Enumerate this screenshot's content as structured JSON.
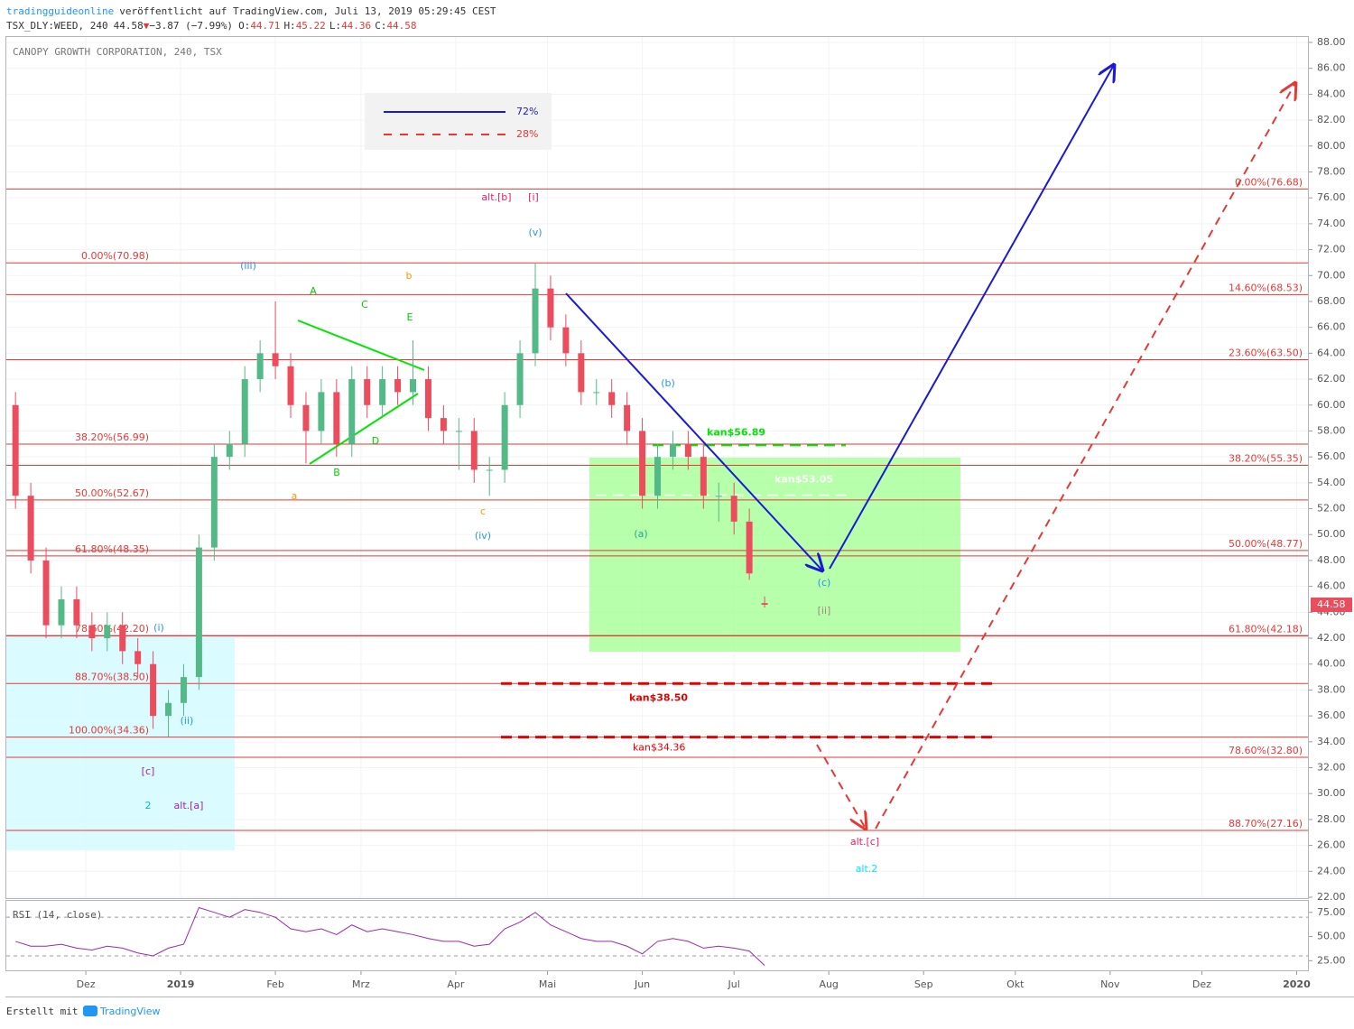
{
  "header": {
    "author": "tradingguideonline",
    "published": "veröffentlicht auf TradingView.com, Juli 13, 2019 05:29:45 CEST",
    "symbol": "TSX_DLY:WEED, 240",
    "last": "44.58",
    "arrow": "▼",
    "change": "−3.87 (−7.99%)",
    "ohlc": [
      {
        "key": "O:",
        "value": "44.71"
      },
      {
        "key": "H:",
        "value": "45.22"
      },
      {
        "key": "L:",
        "value": "44.36"
      },
      {
        "key": "C:",
        "value": "44.58"
      }
    ]
  },
  "footer": {
    "made_with": "Erstellt mit",
    "brand": "TradingView"
  },
  "chart_data": {
    "type": "candlestick",
    "title": "CANOPY GROWTH CORPORATION, 240, TSX",
    "x": [
      7,
      12,
      17,
      22,
      27,
      32,
      37,
      42,
      47,
      52,
      57,
      62,
      67,
      72,
      77,
      82,
      87,
      92,
      97,
      102,
      107,
      112,
      117,
      122,
      127,
      132,
      137,
      142,
      147,
      152,
      157,
      162,
      167,
      172,
      177,
      182,
      187,
      192,
      197,
      202,
      207,
      212,
      217,
      222,
      227,
      232,
      237,
      242,
      247,
      252
    ],
    "open": [
      60,
      53,
      48,
      43,
      45,
      43,
      42,
      43,
      41,
      40,
      36,
      37,
      39,
      49,
      56,
      57,
      62,
      64,
      63,
      60,
      58,
      61,
      57,
      62,
      60,
      62,
      61,
      62,
      59,
      58,
      58,
      55,
      55,
      60,
      64,
      69,
      66,
      64,
      61,
      61,
      60,
      58,
      53,
      56,
      57,
      56,
      53,
      53,
      51,
      44.71
    ],
    "high": [
      61,
      54,
      49,
      46,
      46,
      44,
      44,
      44,
      42,
      41,
      38,
      40,
      50,
      57,
      58,
      63,
      65,
      68,
      64,
      61,
      62,
      62,
      63,
      63,
      63,
      63,
      65,
      63,
      60,
      59,
      59,
      56,
      61,
      65,
      70.98,
      70,
      67,
      65,
      62,
      62,
      61,
      59,
      57,
      58,
      58,
      57,
      54,
      54,
      52,
      45.22
    ],
    "low": [
      52,
      47,
      42,
      42,
      42,
      41,
      41,
      40,
      39,
      35,
      34.36,
      36,
      38,
      48,
      55,
      56,
      61,
      62,
      59,
      55.5,
      57,
      56,
      56,
      59,
      59,
      60,
      60,
      58,
      57,
      55,
      54,
      53,
      54,
      59,
      63,
      65,
      63,
      60,
      60,
      59,
      57,
      52,
      52,
      55,
      55,
      52,
      51,
      50,
      46.5,
      44.36
    ],
    "close": [
      53,
      48,
      43,
      45,
      43,
      42,
      43,
      41,
      40,
      36,
      37,
      39,
      49,
      56,
      57,
      62,
      64,
      63,
      60,
      58,
      61,
      57,
      62,
      60,
      62,
      61,
      62,
      59,
      58,
      58,
      55,
      55,
      60,
      64,
      69,
      66,
      64,
      61,
      61,
      60,
      58,
      53,
      56,
      57,
      56,
      53,
      53,
      51,
      47,
      44.58
    ],
    "up_color": "#53b987",
    "down_color": "#eb4d5c",
    "xlim": [
      4,
      430
    ],
    "xticks": [
      {
        "value": 30,
        "label": "Dez"
      },
      {
        "value": 61,
        "label": "2019"
      },
      {
        "value": 92,
        "label": "Feb"
      },
      {
        "value": 120,
        "label": "Mrz"
      },
      {
        "value": 151,
        "label": "Apr"
      },
      {
        "value": 181,
        "label": "Mai"
      },
      {
        "value": 212,
        "label": "Jun"
      },
      {
        "value": 242,
        "label": "Jul"
      },
      {
        "value": 273,
        "label": "Aug"
      },
      {
        "value": 304,
        "label": "Sep"
      },
      {
        "value": 334,
        "label": "Okt"
      },
      {
        "value": 365,
        "label": "Nov"
      },
      {
        "value": 395,
        "label": "Dez"
      },
      {
        "value": 426,
        "label": "2020"
      }
    ],
    "ylim": [
      22,
      88
    ],
    "yticks": [
      {
        "value": 22,
        "label": "22.00"
      },
      {
        "value": 24,
        "label": "24.00"
      },
      {
        "value": 26,
        "label": "26.00"
      },
      {
        "value": 28,
        "label": "28.00"
      },
      {
        "value": 30,
        "label": "30.00"
      },
      {
        "value": 32,
        "label": "32.00"
      },
      {
        "value": 34,
        "label": "34.00"
      },
      {
        "value": 36,
        "label": "36.00"
      },
      {
        "value": 38,
        "label": "38.00"
      },
      {
        "value": 40,
        "label": "40.00"
      },
      {
        "value": 42,
        "label": "42.00"
      },
      {
        "value": 44,
        "label": "44.00"
      },
      {
        "value": 46,
        "label": "46.00"
      },
      {
        "value": 48,
        "label": "48.00"
      },
      {
        "value": 50,
        "label": "50.00"
      },
      {
        "value": 52,
        "label": "52.00"
      },
      {
        "value": 54,
        "label": "54.00"
      },
      {
        "value": 56,
        "label": "56.00"
      },
      {
        "value": 58,
        "label": "58.00"
      },
      {
        "value": 60,
        "label": "60.00"
      },
      {
        "value": 62,
        "label": "62.00"
      },
      {
        "value": 64,
        "label": "64.00"
      },
      {
        "value": 66,
        "label": "66.00"
      },
      {
        "value": 68,
        "label": "68.00"
      },
      {
        "value": 70,
        "label": "70.00"
      },
      {
        "value": 72,
        "label": "72.00"
      },
      {
        "value": 74,
        "label": "74.00"
      },
      {
        "value": 76,
        "label": "76.00"
      },
      {
        "value": 78,
        "label": "78.00"
      },
      {
        "value": 80,
        "label": "80.00"
      },
      {
        "value": 82,
        "label": "82.00"
      },
      {
        "value": 84,
        "label": "84.00"
      },
      {
        "value": 86,
        "label": "86.00"
      },
      {
        "value": 88,
        "label": "88.00"
      }
    ],
    "grid": true,
    "last_price": {
      "value": 44.58,
      "label": "44.58"
    },
    "fib_color": "#e53935",
    "fib_levels": [
      {
        "value": 76.68,
        "label": "0.00%(76.68)",
        "side": "right"
      },
      {
        "value": 70.98,
        "label": "0.00%(70.98)",
        "side": "left"
      },
      {
        "value": 68.53,
        "label": "14.60%(68.53)",
        "side": "right"
      },
      {
        "value": 63.5,
        "label": "23.60%(63.50)",
        "side": "right"
      },
      {
        "value": 56.99,
        "label": "38.20%(56.99)",
        "side": "left"
      },
      {
        "value": 55.35,
        "label": "38.20%(55.35)",
        "side": "right"
      },
      {
        "value": 52.67,
        "label": "50.00%(52.67)",
        "side": "left"
      },
      {
        "value": 48.77,
        "label": "50.00%(48.77)",
        "side": "right"
      },
      {
        "value": 48.35,
        "label": "61.80%(48.35)",
        "side": "left"
      },
      {
        "value": 42.2,
        "label": "78.60%(42.20)",
        "side": "left"
      },
      {
        "value": 42.18,
        "label": "61.80%(42.18)",
        "side": "right"
      },
      {
        "value": 38.5,
        "label": "88.70%(38.50)",
        "side": "left"
      },
      {
        "value": 34.36,
        "label": "100.00%(34.36)",
        "side": "left"
      },
      {
        "value": 32.8,
        "label": "78.60%(32.80)",
        "side": "right"
      },
      {
        "value": 27.16,
        "label": "88.70%(27.16)",
        "side": "right"
      }
    ],
    "targets": [
      {
        "value": 56.89,
        "label": "kan$56.89",
        "color": "#00e600"
      },
      {
        "value": 53.05,
        "label": "kan$53.05",
        "color": "#ffffff"
      },
      {
        "value": 38.5,
        "label": "kan$38.50",
        "color": "#e50000"
      },
      {
        "value": 34.36,
        "label": "kan$34.36",
        "color": "#e50000"
      }
    ],
    "legend": [
      {
        "name": "72%",
        "color": "#1a1ad6",
        "style": "solid"
      },
      {
        "name": "28%",
        "color": "#e53935",
        "style": "dashed"
      }
    ],
    "annotations": [
      {
        "text": "alt.[b]",
        "color": "#e91e63"
      },
      {
        "text": "[i]",
        "color": "#e91e63"
      },
      {
        "text": "(v)",
        "color": "#2196f3"
      },
      {
        "text": "(iii)",
        "color": "#2196f3"
      },
      {
        "text": "b",
        "color": "#ff9800"
      },
      {
        "text": "A",
        "color": "#00d000"
      },
      {
        "text": "C",
        "color": "#00d000"
      },
      {
        "text": "E",
        "color": "#00d000"
      },
      {
        "text": "D",
        "color": "#00d000"
      },
      {
        "text": "B",
        "color": "#00d000"
      },
      {
        "text": "a",
        "color": "#ff9800"
      },
      {
        "text": "c",
        "color": "#ff9800"
      },
      {
        "text": "(iv)",
        "color": "#2196f3"
      },
      {
        "text": "(b)",
        "color": "#2196f3"
      },
      {
        "text": "(a)",
        "color": "#26a69a"
      },
      {
        "text": "(c)",
        "color": "#2196f3"
      },
      {
        "text": "[ii]",
        "color": "#a1887f"
      },
      {
        "text": "(i)",
        "color": "#2196f3"
      },
      {
        "text": "(ii)",
        "color": "#2196f3"
      },
      {
        "text": "[c]",
        "color": "#9c27b0"
      },
      {
        "text": "2",
        "color": "#00bcd4"
      },
      {
        "text": "alt.[a]",
        "color": "#9c27b0"
      },
      {
        "text": "alt.[c]",
        "color": "#e91e63"
      },
      {
        "text": "alt.2",
        "color": "#00e5ff"
      }
    ],
    "rsi": {
      "title": "RSI (14, close)",
      "color": "#9c27b0",
      "values": [
        45,
        40,
        40,
        42,
        38,
        36,
        40,
        38,
        33,
        30,
        38,
        42,
        80,
        75,
        70,
        78,
        75,
        70,
        58,
        55,
        58,
        52,
        62,
        55,
        58,
        55,
        52,
        48,
        45,
        45,
        40,
        42,
        58,
        65,
        75,
        62,
        55,
        48,
        45,
        45,
        40,
        32,
        45,
        48,
        45,
        38,
        40,
        38,
        35,
        20
      ],
      "ylim": [
        15,
        87
      ],
      "yticks": [
        {
          "value": 25,
          "label": "25.00"
        },
        {
          "value": 50,
          "label": "50.00"
        },
        {
          "value": 75,
          "label": "75.00"
        }
      ],
      "bands": [
        30,
        70
      ]
    }
  }
}
